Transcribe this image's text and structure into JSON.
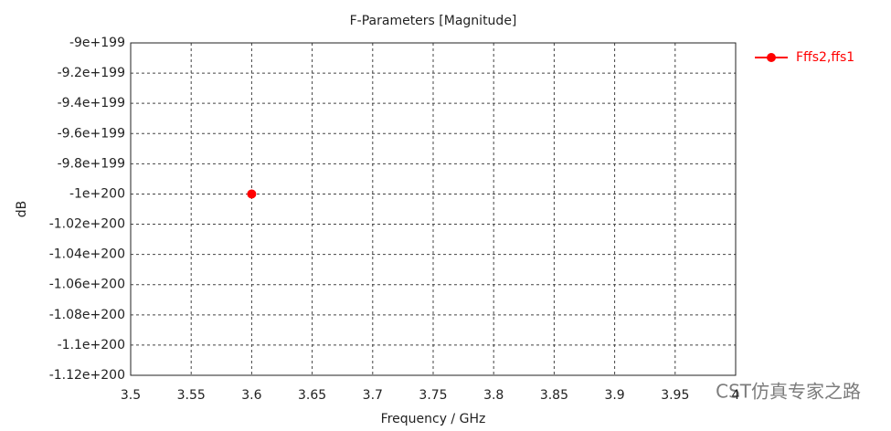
{
  "chart_data": {
    "type": "line",
    "title": "F-Parameters [Magnitude]",
    "x_label": "Frequency / GHz",
    "y_label": "dB",
    "x": [
      3.6
    ],
    "series": [
      {
        "name": "Fffs2,ffs1",
        "color": "#ff0000",
        "values": [
          -1e+200
        ]
      }
    ],
    "xlim": [
      3.5,
      4
    ],
    "xticks": [
      3.5,
      3.55,
      3.6,
      3.65,
      3.7,
      3.75,
      3.8,
      3.85,
      3.9,
      3.95,
      4
    ],
    "ylim": [
      -1.12e+200,
      -9e+199
    ],
    "yticks": [
      {
        "value": -1.12e+200,
        "label": "-1.12e+200"
      },
      {
        "value": -1.1e+200,
        "label": "-1.1e+200"
      },
      {
        "value": -1.08e+200,
        "label": "-1.08e+200"
      },
      {
        "value": -1.06e+200,
        "label": "-1.06e+200"
      },
      {
        "value": -1.04e+200,
        "label": "-1.04e+200"
      },
      {
        "value": -1.02e+200,
        "label": "-1.02e+200"
      },
      {
        "value": -1e+200,
        "label": "-1e+200"
      },
      {
        "value": -9.8e+199,
        "label": "-9.8e+199"
      },
      {
        "value": -9.6e+199,
        "label": "-9.6e+199"
      },
      {
        "value": -9.4e+199,
        "label": "-9.4e+199"
      },
      {
        "value": -9.2e+199,
        "label": "-9.2e+199"
      },
      {
        "value": -9e+199,
        "label": "-9e+199"
      }
    ],
    "grid": true,
    "legend": "right",
    "watermark": "CST仿真专家之路"
  }
}
